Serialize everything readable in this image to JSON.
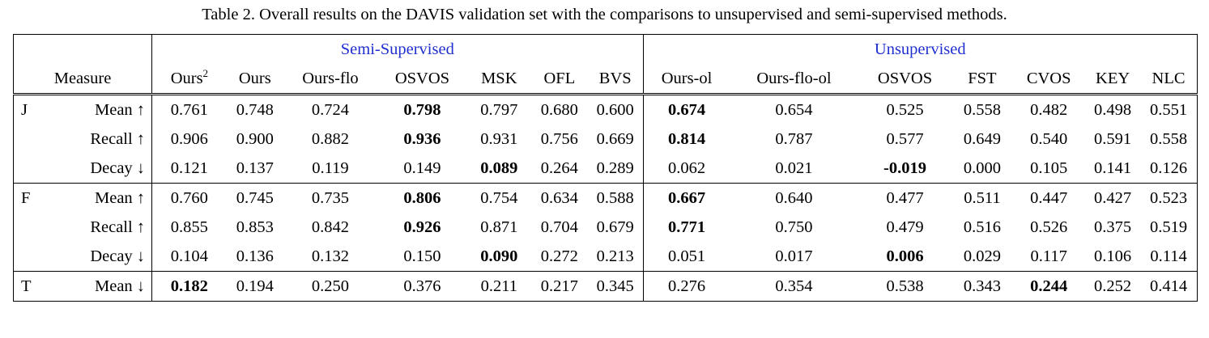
{
  "caption": "Table 2. Overall results on the DAVIS validation set with the comparisons to unsupervised and semi-supervised methods.",
  "group_headers": {
    "semi": "Semi-Supervised",
    "unsup": "Unsupervised"
  },
  "measure_label": "Measure",
  "columns": {
    "semi": [
      "Ours",
      "Ours",
      "Ours-flo",
      "OSVOS",
      "MSK",
      "OFL",
      "BVS"
    ],
    "semi_first_sup": "2",
    "unsup": [
      "Ours-ol",
      "Ours-flo-ol",
      "OSVOS",
      "FST",
      "CVOS",
      "KEY",
      "NLC"
    ]
  },
  "colors": {
    "group_header": "#1f2fd0",
    "text": "#000000"
  },
  "groups": [
    {
      "letter": "J",
      "rows": [
        {
          "metric": "Mean ↑",
          "semi": [
            "0.761",
            "0.748",
            "0.724",
            "0.798",
            "0.797",
            "0.680",
            "0.600"
          ],
          "unsup": [
            "0.674",
            "0.654",
            "0.525",
            "0.558",
            "0.482",
            "0.498",
            "0.551"
          ],
          "bold_semi": [
            3
          ],
          "bold_unsup": [
            0
          ]
        },
        {
          "metric": "Recall ↑",
          "semi": [
            "0.906",
            "0.900",
            "0.882",
            "0.936",
            "0.931",
            "0.756",
            "0.669"
          ],
          "unsup": [
            "0.814",
            "0.787",
            "0.577",
            "0.649",
            "0.540",
            "0.591",
            "0.558"
          ],
          "bold_semi": [
            3
          ],
          "bold_unsup": [
            0
          ]
        },
        {
          "metric": "Decay ↓",
          "semi": [
            "0.121",
            "0.137",
            "0.119",
            "0.149",
            "0.089",
            "0.264",
            "0.289"
          ],
          "unsup": [
            "0.062",
            "0.021",
            "-0.019",
            "0.000",
            "0.105",
            "0.141",
            "0.126"
          ],
          "bold_semi": [
            4
          ],
          "bold_unsup": [
            2
          ]
        }
      ]
    },
    {
      "letter": "F",
      "rows": [
        {
          "metric": "Mean ↑",
          "semi": [
            "0.760",
            "0.745",
            "0.735",
            "0.806",
            "0.754",
            "0.634",
            "0.588"
          ],
          "unsup": [
            "0.667",
            "0.640",
            "0.477",
            "0.511",
            "0.447",
            "0.427",
            "0.523"
          ],
          "bold_semi": [
            3
          ],
          "bold_unsup": [
            0
          ]
        },
        {
          "metric": "Recall ↑",
          "semi": [
            "0.855",
            "0.853",
            "0.842",
            "0.926",
            "0.871",
            "0.704",
            "0.679"
          ],
          "unsup": [
            "0.771",
            "0.750",
            "0.479",
            "0.516",
            "0.526",
            "0.375",
            "0.519"
          ],
          "bold_semi": [
            3
          ],
          "bold_unsup": [
            0
          ]
        },
        {
          "metric": "Decay ↓",
          "semi": [
            "0.104",
            "0.136",
            "0.132",
            "0.150",
            "0.090",
            "0.272",
            "0.213"
          ],
          "unsup": [
            "0.051",
            "0.017",
            "0.006",
            "0.029",
            "0.117",
            "0.106",
            "0.114"
          ],
          "bold_semi": [
            4
          ],
          "bold_unsup": [
            2
          ]
        }
      ]
    },
    {
      "letter": "T",
      "rows": [
        {
          "metric": "Mean ↓",
          "semi": [
            "0.182",
            "0.194",
            "0.250",
            "0.376",
            "0.211",
            "0.217",
            "0.345"
          ],
          "unsup": [
            "0.276",
            "0.354",
            "0.538",
            "0.343",
            "0.244",
            "0.252",
            "0.414"
          ],
          "bold_semi": [
            0
          ],
          "bold_unsup": [
            4
          ]
        }
      ]
    }
  ]
}
